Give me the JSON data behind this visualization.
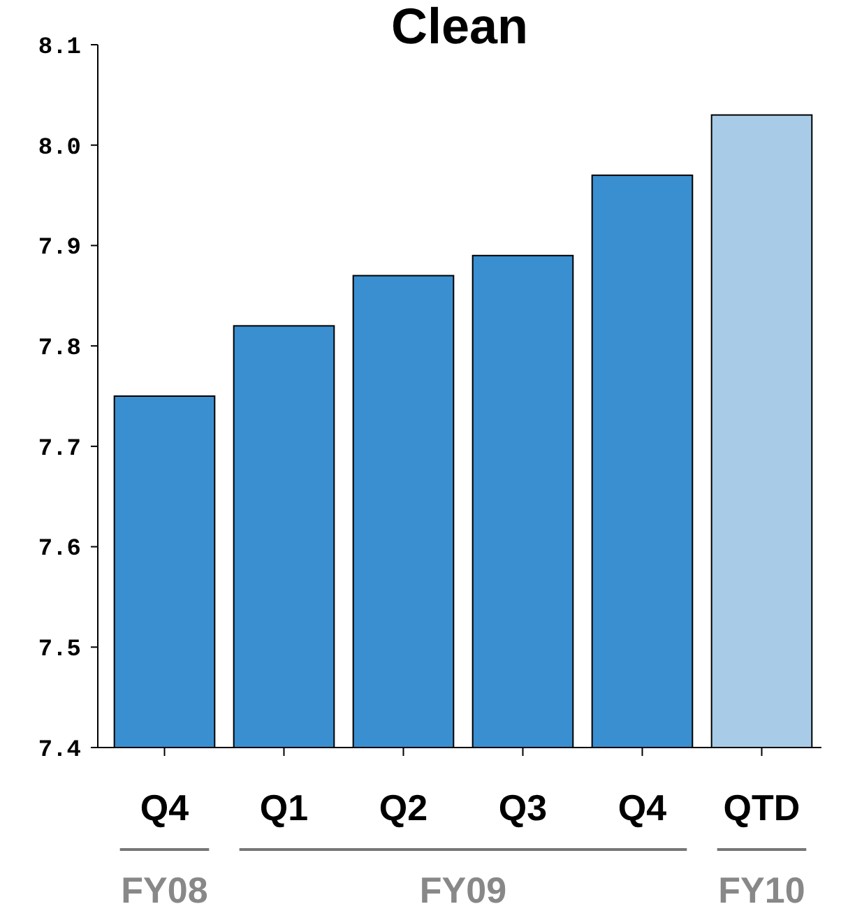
{
  "chart_data": {
    "type": "bar",
    "title": "Clean",
    "categories": [
      "Q4",
      "Q1",
      "Q2",
      "Q3",
      "Q4",
      "QTD"
    ],
    "values": [
      7.75,
      7.82,
      7.87,
      7.89,
      7.97,
      8.03
    ],
    "colors": [
      "#3a8fd0",
      "#3a8fd0",
      "#3a8fd0",
      "#3a8fd0",
      "#3a8fd0",
      "#a8cce8"
    ],
    "ylim": [
      7.4,
      8.1
    ],
    "yticks": [
      {
        "value": 7.4,
        "label": "7.4"
      },
      {
        "value": 7.5,
        "label": "7.5"
      },
      {
        "value": 7.6,
        "label": "7.6"
      },
      {
        "value": 7.7,
        "label": "7.7"
      },
      {
        "value": 7.8,
        "label": "7.8"
      },
      {
        "value": 7.9,
        "label": "7.9"
      },
      {
        "value": 8.0,
        "label": "8.0"
      },
      {
        "value": 8.1,
        "label": "8.1"
      }
    ],
    "grid": false,
    "annotations": [
      "FY08",
      "FY09",
      "FY10"
    ]
  }
}
